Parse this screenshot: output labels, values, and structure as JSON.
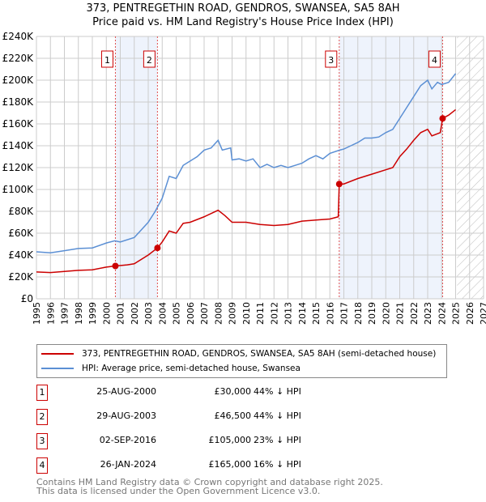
{
  "title": "373, PENTREGETHIN ROAD, GENDROS, SWANSEA, SA5 8AH",
  "subtitle": "Price paid vs. HM Land Registry's House Price Index (HPI)",
  "chart_data": {
    "type": "line",
    "xlim": [
      1995,
      2027
    ],
    "ylim": [
      0,
      240000
    ],
    "x_ticks": [
      "1995",
      "1996",
      "1997",
      "1998",
      "1999",
      "2000",
      "2001",
      "2002",
      "2003",
      "2004",
      "2005",
      "2006",
      "2007",
      "2008",
      "2009",
      "2010",
      "2011",
      "2012",
      "2013",
      "2014",
      "2015",
      "2016",
      "2017",
      "2018",
      "2019",
      "2020",
      "2021",
      "2022",
      "2023",
      "2024",
      "2025",
      "2026",
      "2027"
    ],
    "y_ticks": [
      {
        "v": 0,
        "l": "£0"
      },
      {
        "v": 20000,
        "l": "£20K"
      },
      {
        "v": 40000,
        "l": "£40K"
      },
      {
        "v": 60000,
        "l": "£60K"
      },
      {
        "v": 80000,
        "l": "£80K"
      },
      {
        "v": 100000,
        "l": "£100K"
      },
      {
        "v": 120000,
        "l": "£120K"
      },
      {
        "v": 140000,
        "l": "£140K"
      },
      {
        "v": 160000,
        "l": "£160K"
      },
      {
        "v": 180000,
        "l": "£180K"
      },
      {
        "v": 200000,
        "l": "£200K"
      },
      {
        "v": 220000,
        "l": "£220K"
      },
      {
        "v": 240000,
        "l": "£240K"
      }
    ],
    "shaded_ranges": [
      [
        2000.65,
        2003.66
      ],
      [
        2016.67,
        2024.07
      ]
    ],
    "forecast_start": 2025.1,
    "series": [
      {
        "name": "373, PENTREGETHIN ROAD, GENDROS, SWANSEA, SA5 8AH (semi-detached house)",
        "color": "#cc0000",
        "x": [
          1995,
          1996,
          1997,
          1998,
          1999,
          2000,
          2000.65,
          2001.5,
          2002,
          2003,
          2003.66,
          2004,
          2004.5,
          2005,
          2005.5,
          2006,
          2007,
          2008,
          2008.5,
          2009,
          2010,
          2011,
          2012,
          2013,
          2014,
          2015,
          2016,
          2016.6,
          2016.67,
          2017,
          2018,
          2019,
          2020,
          2020.5,
          2021,
          2021.5,
          2022,
          2022.5,
          2023,
          2023.3,
          2023.9,
          2024.07,
          2024.5,
          2025
        ],
        "y": [
          24500,
          24000,
          25000,
          26000,
          26500,
          29000,
          30000,
          31000,
          32000,
          40000,
          46500,
          52000,
          62000,
          60000,
          69000,
          70000,
          75000,
          81000,
          76000,
          70000,
          70000,
          68000,
          67000,
          68000,
          71000,
          72000,
          73000,
          75000,
          105000,
          105000,
          110000,
          114000,
          118000,
          120000,
          130000,
          137000,
          145000,
          152000,
          155000,
          149000,
          152000,
          165000,
          168000,
          173000
        ]
      },
      {
        "name": "HPI: Average price, semi-detached house, Swansea",
        "color": "#5b8fd4",
        "x": [
          1995,
          1996,
          1997,
          1998,
          1999,
          2000,
          2000.6,
          2001,
          2002,
          2002.5,
          2003,
          2003.5,
          2004,
          2004.5,
          2005,
          2005.5,
          2006,
          2006.5,
          2007,
          2007.5,
          2008,
          2008.3,
          2008.9,
          2009,
          2009.5,
          2010,
          2010.5,
          2011,
          2011.5,
          2012,
          2012.5,
          2013,
          2013.5,
          2014,
          2014.5,
          2015,
          2015.5,
          2016,
          2016.7,
          2017,
          2017.5,
          2018,
          2018.5,
          2019,
          2019.5,
          2020,
          2020.5,
          2021,
          2021.5,
          2022,
          2022.5,
          2023,
          2023.3,
          2023.7,
          2024,
          2024.5,
          2025
        ],
        "y": [
          43000,
          42000,
          44000,
          46000,
          46500,
          51000,
          53000,
          52000,
          56000,
          63000,
          70000,
          80000,
          92000,
          112000,
          110000,
          122000,
          126000,
          130000,
          136000,
          138000,
          145000,
          136000,
          138000,
          127000,
          128000,
          126000,
          128000,
          120000,
          123000,
          120000,
          122000,
          120000,
          122000,
          124000,
          128000,
          131000,
          128000,
          133000,
          136000,
          137000,
          140000,
          143000,
          147000,
          147000,
          148000,
          152000,
          155000,
          165000,
          175000,
          185000,
          195000,
          200000,
          192000,
          198000,
          196000,
          198000,
          206000
        ]
      }
    ],
    "sales": [
      {
        "n": "1",
        "x": 2000.65,
        "y": 30000
      },
      {
        "n": "2",
        "x": 2003.66,
        "y": 46500
      },
      {
        "n": "3",
        "x": 2016.67,
        "y": 105000
      },
      {
        "n": "4",
        "x": 2024.07,
        "y": 165000
      }
    ]
  },
  "legend": [
    "373, PENTREGETHIN ROAD, GENDROS, SWANSEA, SA5 8AH (semi-detached house)",
    "HPI: Average price, semi-detached house, Swansea"
  ],
  "transactions": [
    {
      "n": "1",
      "date": "25-AUG-2000",
      "price": "£30,000",
      "pct": "44% ↓ HPI"
    },
    {
      "n": "2",
      "date": "29-AUG-2003",
      "price": "£46,500",
      "pct": "44% ↓ HPI"
    },
    {
      "n": "3",
      "date": "02-SEP-2016",
      "price": "£105,000",
      "pct": "23% ↓ HPI"
    },
    {
      "n": "4",
      "date": "26-JAN-2024",
      "price": "£165,000",
      "pct": "16% ↓ HPI"
    }
  ],
  "footer": [
    "Contains HM Land Registry data © Crown copyright and database right 2025.",
    "This data is licensed under the Open Government Licence v3.0."
  ]
}
